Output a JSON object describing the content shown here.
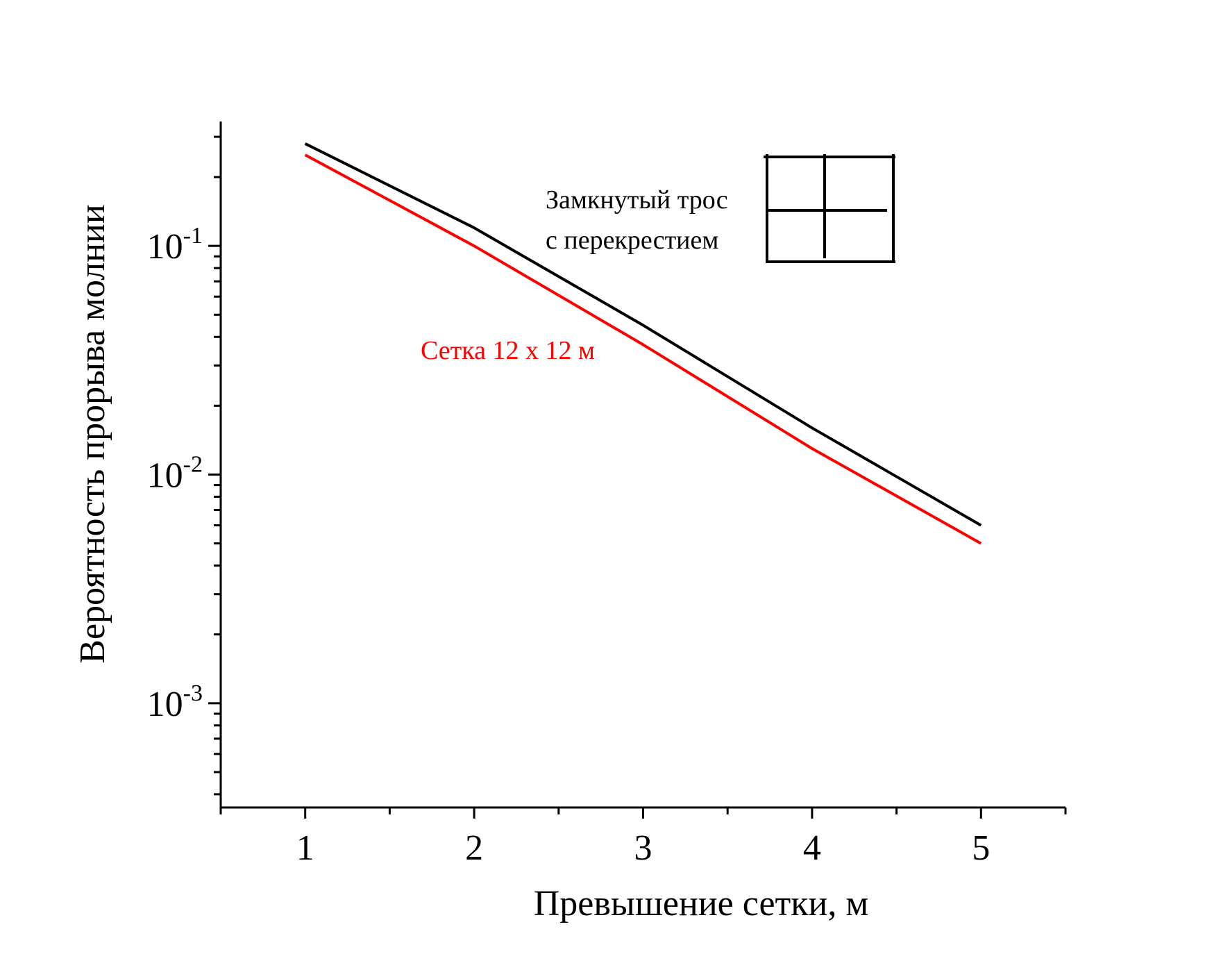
{
  "chart_data": {
    "type": "line",
    "title": "",
    "xlabel": "Превышение сетки,  м",
    "ylabel": "Вероятность прорыва молнии",
    "xlim": [
      0.5,
      5.5
    ],
    "ylim": [
      0.00035,
      0.35
    ],
    "yscale": "log",
    "grid": false,
    "x": [
      1,
      2,
      3,
      4,
      5
    ],
    "x_ticks": [
      1,
      2,
      3,
      4,
      5
    ],
    "x_tick_labels": [
      "1",
      "2",
      "3",
      "4",
      "5"
    ],
    "y_ticks": [
      {
        "value": 0.1,
        "base": "10",
        "exp": "-1"
      },
      {
        "value": 0.01,
        "base": "10",
        "exp": "-2"
      },
      {
        "value": 0.001,
        "base": "10",
        "exp": "-3"
      }
    ],
    "series": [
      {
        "name": "Замкнутый трос с перекрестием",
        "label_lines": [
          "Замкнутый трос",
          "с перекрестием"
        ],
        "color": "#000000",
        "x": [
          1,
          2,
          3,
          4,
          5
        ],
        "values": [
          0.28,
          0.12,
          0.045,
          0.016,
          0.006
        ]
      },
      {
        "name": "Сетка 12 х 12 м",
        "label_lines": [
          "Сетка 12 х 12 м"
        ],
        "color": "#ff0000",
        "x": [
          1,
          2,
          3,
          4,
          5
        ],
        "values": [
          0.25,
          0.1,
          0.037,
          0.013,
          0.005
        ]
      }
    ]
  }
}
